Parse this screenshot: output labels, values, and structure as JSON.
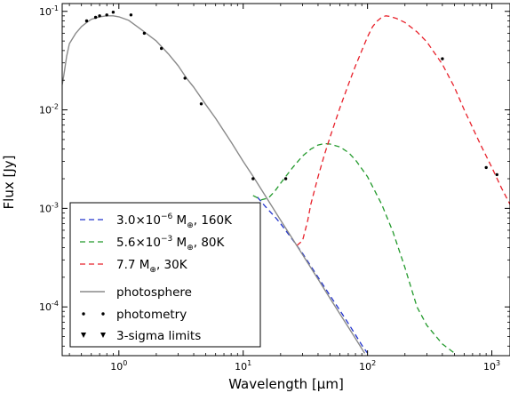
{
  "chart_data": {
    "type": "line",
    "x_scale": "log",
    "y_scale": "log",
    "xlabel": "Wavelength [µm]",
    "ylabel": "Flux [Jy]",
    "xlim": [
      0.35,
      1400
    ],
    "ylim": [
      3.2e-05,
      0.12
    ],
    "x_ticks": [
      {
        "value": 1,
        "base": "10",
        "exp": "0"
      },
      {
        "value": 10,
        "base": "10",
        "exp": "1"
      },
      {
        "value": 100,
        "base": "10",
        "exp": "2"
      },
      {
        "value": 1000,
        "base": "10",
        "exp": "3"
      }
    ],
    "y_ticks": [
      {
        "value": 0.0001,
        "base": "10",
        "exp": "-4"
      },
      {
        "value": 0.001,
        "base": "10",
        "exp": "-3"
      },
      {
        "value": 0.01,
        "base": "10",
        "exp": "-2"
      },
      {
        "value": 0.1,
        "base": "10",
        "exp": "-1"
      }
    ],
    "legend_position": "lower-left",
    "series": [
      {
        "name": "3.0×10⁻⁶ M⊕, 160K",
        "color": "#2233cc",
        "style": "dashed",
        "points": [
          [
            13,
            0.0013
          ],
          [
            15,
            0.00105
          ],
          [
            18,
            0.00082
          ],
          [
            20,
            0.0007
          ],
          [
            25,
            0.00048
          ],
          [
            30,
            0.00035
          ],
          [
            40,
            0.0002
          ],
          [
            50,
            0.00013
          ],
          [
            60,
            9.2e-05
          ],
          [
            70,
            6.8e-05
          ],
          [
            80,
            5.2e-05
          ],
          [
            90,
            4.1e-05
          ],
          [
            100,
            3.4e-05
          ]
        ]
      },
      {
        "name": "5.6×10⁻³ M⊕, 80K",
        "color": "#22992b",
        "style": "dashed",
        "points": [
          [
            12,
            0.00135
          ],
          [
            14,
            0.00122
          ],
          [
            16,
            0.00128
          ],
          [
            18,
            0.0015
          ],
          [
            20,
            0.0018
          ],
          [
            25,
            0.0026
          ],
          [
            30,
            0.0034
          ],
          [
            35,
            0.004
          ],
          [
            40,
            0.0044
          ],
          [
            45,
            0.00455
          ],
          [
            50,
            0.0045
          ],
          [
            60,
            0.0042
          ],
          [
            70,
            0.0037
          ],
          [
            80,
            0.0031
          ],
          [
            100,
            0.0021
          ],
          [
            130,
            0.0011
          ],
          [
            160,
            0.00058
          ],
          [
            200,
            0.00025
          ],
          [
            250,
            0.0001
          ],
          [
            300,
            6.5e-05
          ],
          [
            400,
            4.2e-05
          ],
          [
            500,
            3.4e-05
          ]
        ]
      },
      {
        "name": "7.7 M⊕, 30K",
        "color": "#e8202a",
        "style": "dashed",
        "points": [
          [
            27,
            0.00042
          ],
          [
            30,
            0.00047
          ],
          [
            33,
            0.00075
          ],
          [
            35,
            0.0011
          ],
          [
            40,
            0.0021
          ],
          [
            45,
            0.0035
          ],
          [
            50,
            0.0053
          ],
          [
            60,
            0.0105
          ],
          [
            70,
            0.018
          ],
          [
            80,
            0.028
          ],
          [
            90,
            0.04
          ],
          [
            100,
            0.055
          ],
          [
            110,
            0.07
          ],
          [
            120,
            0.08
          ],
          [
            130,
            0.087
          ],
          [
            140,
            0.09
          ],
          [
            150,
            0.089
          ],
          [
            170,
            0.085
          ],
          [
            200,
            0.077
          ],
          [
            250,
            0.062
          ],
          [
            300,
            0.049
          ],
          [
            400,
            0.029
          ],
          [
            500,
            0.017
          ],
          [
            600,
            0.01
          ],
          [
            700,
            0.0066
          ],
          [
            800,
            0.0046
          ],
          [
            1000,
            0.0026
          ],
          [
            1200,
            0.0016
          ],
          [
            1400,
            0.0011
          ]
        ]
      },
      {
        "name": "photosphere",
        "color": "#8a8a8a",
        "style": "solid",
        "points": [
          [
            0.35,
            0.018
          ],
          [
            0.36,
            0.022
          ],
          [
            0.38,
            0.035
          ],
          [
            0.4,
            0.047
          ],
          [
            0.45,
            0.06
          ],
          [
            0.5,
            0.07
          ],
          [
            0.55,
            0.077
          ],
          [
            0.6,
            0.083
          ],
          [
            0.7,
            0.088
          ],
          [
            0.8,
            0.09
          ],
          [
            0.9,
            0.09
          ],
          [
            1,
            0.088
          ],
          [
            1.2,
            0.081
          ],
          [
            1.5,
            0.066
          ],
          [
            2,
            0.05
          ],
          [
            2.5,
            0.037
          ],
          [
            3,
            0.028
          ],
          [
            3.5,
            0.021
          ],
          [
            4,
            0.017
          ],
          [
            5,
            0.0113
          ],
          [
            6,
            0.0082
          ],
          [
            8,
            0.0047
          ],
          [
            10,
            0.003
          ],
          [
            12,
            0.00212
          ],
          [
            15,
            0.00135
          ],
          [
            20,
            0.00076
          ],
          [
            25,
            0.000488
          ],
          [
            30,
            0.000339
          ],
          [
            40,
            0.000191
          ],
          [
            50,
            0.000122
          ],
          [
            60,
            8.48e-05
          ],
          [
            70,
            6.23e-05
          ],
          [
            80,
            4.77e-05
          ],
          [
            90,
            3.77e-05
          ],
          [
            95,
            3.38e-05
          ]
        ]
      }
    ],
    "photometry": [
      [
        0.55,
        0.08
      ],
      [
        0.65,
        0.087
      ],
      [
        0.7,
        0.09
      ],
      [
        0.8,
        0.092
      ],
      [
        0.9,
        0.098
      ],
      [
        1.25,
        0.092
      ],
      [
        1.6,
        0.06
      ],
      [
        2.2,
        0.042
      ],
      [
        3.4,
        0.021
      ],
      [
        4.6,
        0.0115
      ],
      [
        12,
        0.002
      ],
      [
        22,
        0.002
      ],
      [
        400,
        0.033
      ],
      [
        900,
        0.0026
      ],
      [
        1100,
        0.0022
      ]
    ],
    "limits": [],
    "legend": [
      {
        "label_parts": [
          "3.0×10",
          "−6",
          " M",
          "⊕",
          ", 160K"
        ],
        "color": "#2233cc",
        "marker": "dash"
      },
      {
        "label_parts": [
          "5.6×10",
          "−3",
          " M",
          "⊕",
          ", 80K"
        ],
        "color": "#22992b",
        "marker": "dash"
      },
      {
        "label_parts": [
          "7.7 M",
          "",
          "",
          "⊕",
          ", 30K"
        ],
        "color": "#e8202a",
        "marker": "dash"
      },
      {
        "label": "photosphere",
        "color": "#8a8a8a",
        "marker": "line"
      },
      {
        "label": "photometry",
        "color": "#000000",
        "marker": "dots"
      },
      {
        "label": "3-sigma limits",
        "color": "#000000",
        "marker": "triangles"
      }
    ]
  }
}
